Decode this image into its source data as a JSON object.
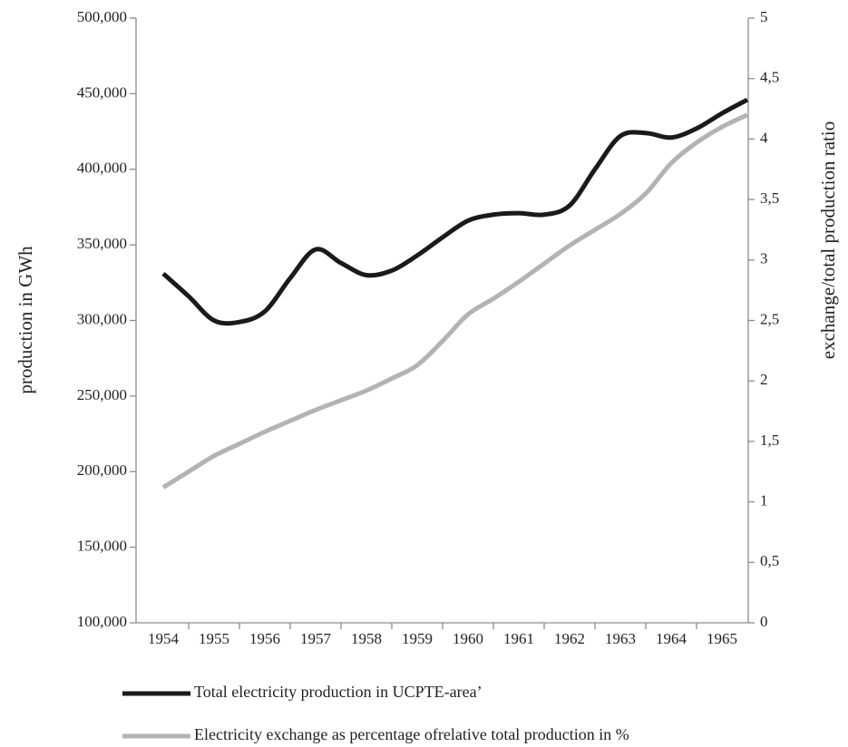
{
  "chart_data": {
    "type": "line",
    "ylabel": "production in GWh",
    "y2label": "exchange/total production ratio",
    "categories": [
      "1954",
      null,
      "1955",
      null,
      "1956",
      null,
      "1957",
      null,
      "1958",
      null,
      "1959",
      null,
      "1960",
      null,
      "1961",
      null,
      "1962",
      null,
      "1963",
      null,
      "1964",
      null,
      "1965",
      null
    ],
    "series": [
      {
        "name": "Total electricity production in UCPTE-area’",
        "color": "#1a1a1a",
        "axis": "y",
        "values": [
          331000,
          316000,
          300000,
          299000,
          306000,
          328000,
          347000,
          338000,
          330000,
          333000,
          343000,
          355000,
          366000,
          370000,
          371000,
          370000,
          376000,
          400000,
          422000,
          424000,
          421000,
          427000,
          437000,
          446000
        ]
      },
      {
        "name": "Electricity exchange as percentage ofrelative total production in %",
        "color": "#b3b3b3",
        "axis": "y2",
        "values": [
          1.12,
          1.25,
          1.38,
          1.48,
          1.58,
          1.67,
          1.76,
          1.84,
          1.92,
          2.02,
          2.13,
          2.33,
          2.55,
          2.68,
          2.82,
          2.97,
          3.12,
          3.25,
          3.38,
          3.55,
          3.8,
          3.97,
          4.1,
          4.2
        ]
      }
    ],
    "ylim": [
      100000,
      500000
    ],
    "yticks": [
      {
        "value": 100000,
        "label": "100,000"
      },
      {
        "value": 150000,
        "label": "150,000"
      },
      {
        "value": 200000,
        "label": "200,000"
      },
      {
        "value": 250000,
        "label": "250,000"
      },
      {
        "value": 300000,
        "label": "300,000"
      },
      {
        "value": 350000,
        "label": "350,000"
      },
      {
        "value": 400000,
        "label": "400,000"
      },
      {
        "value": 450000,
        "label": "450,000"
      },
      {
        "value": 500000,
        "label": "500,000"
      }
    ],
    "y2lim": [
      0,
      5
    ],
    "y2ticks": [
      0,
      {
        "value": 0.5,
        "label": "0,5"
      },
      1,
      {
        "value": 1.5,
        "label": "1,5"
      },
      2,
      {
        "value": 2.5,
        "label": "2,5"
      },
      3,
      {
        "value": 3.5,
        "label": "3,5"
      },
      4,
      {
        "value": 4.5,
        "label": "4,5"
      },
      5
    ],
    "grid": false,
    "legend": "bottom"
  }
}
